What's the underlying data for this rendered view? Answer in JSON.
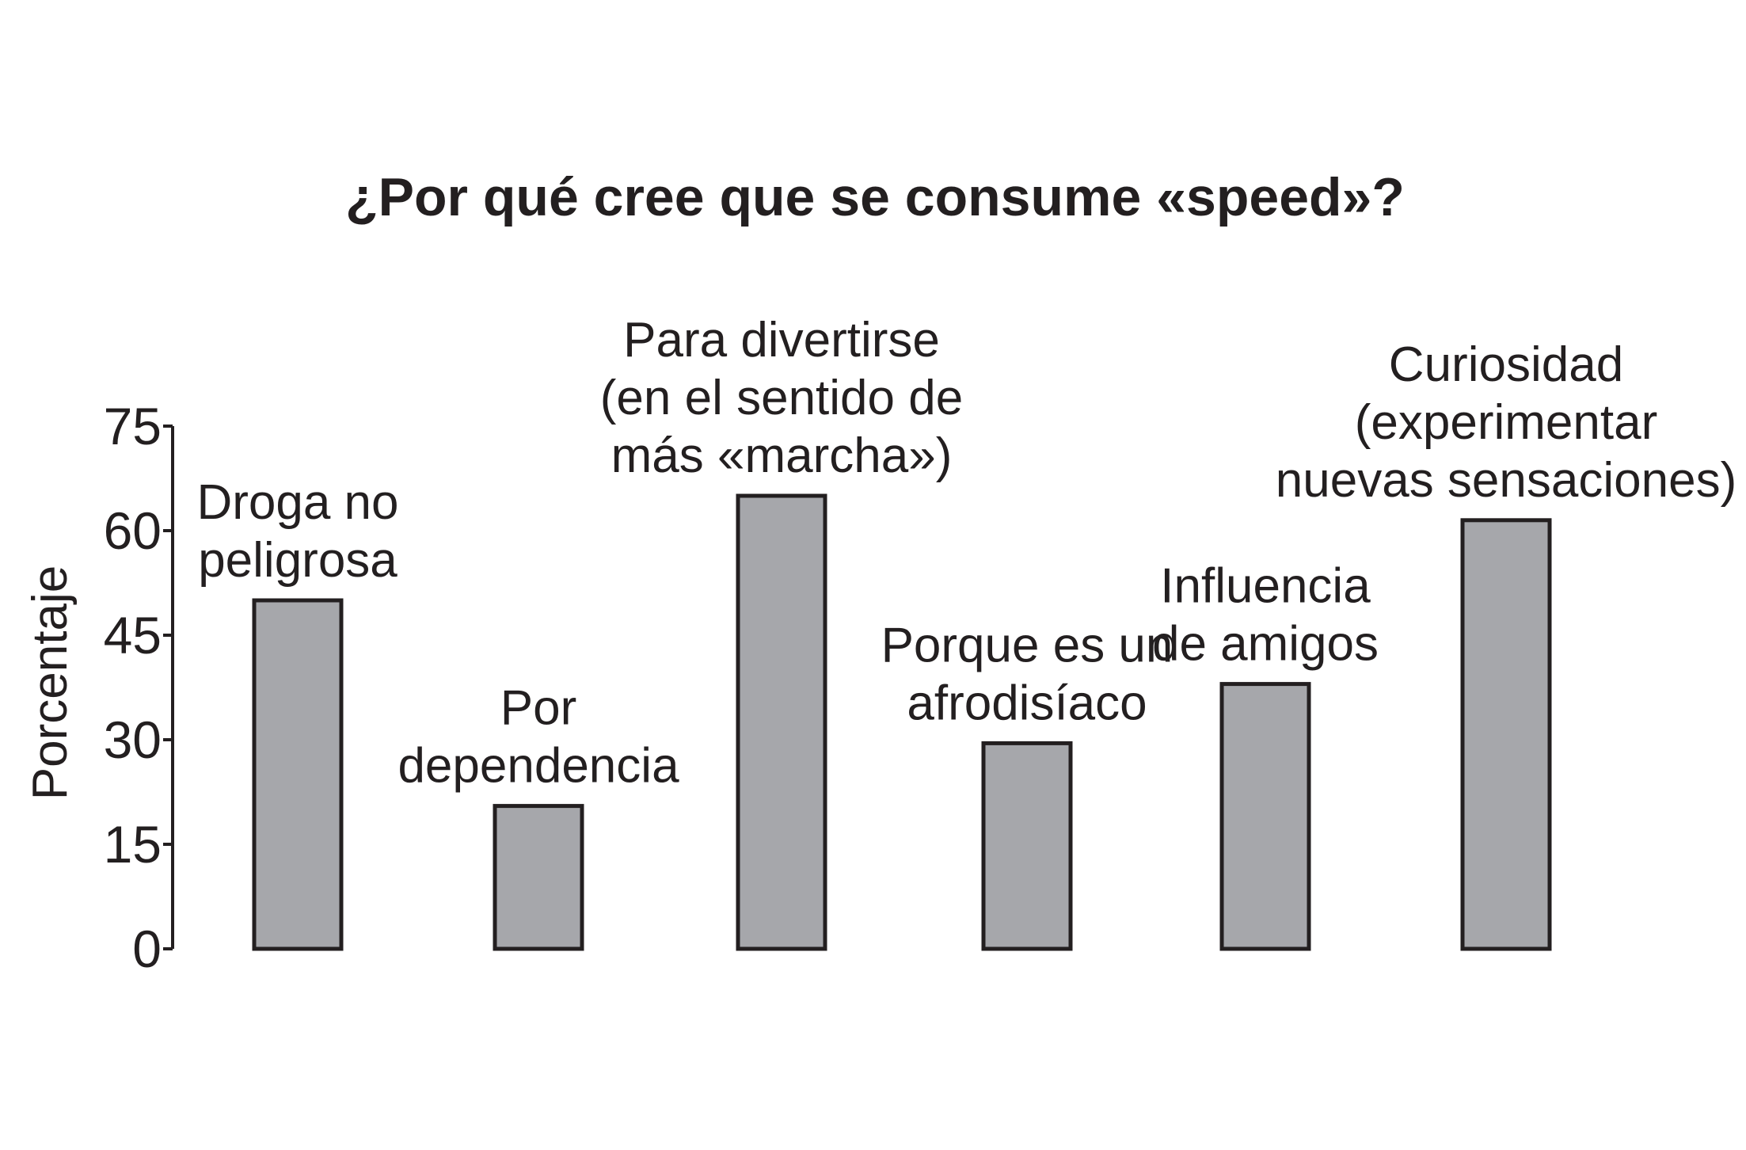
{
  "chart_data": {
    "type": "bar",
    "title": "¿Por qué cree que se consume «speed»?",
    "ylabel": "Porcentaje",
    "xlabel": "",
    "ylim": [
      0,
      75
    ],
    "yticks": [
      0,
      15,
      30,
      45,
      60,
      75
    ],
    "grid": false,
    "categories": [
      [
        "Droga no",
        "peligrosa"
      ],
      [
        "Por",
        "dependencia"
      ],
      [
        "Para divertirse",
        "(en el sentido de",
        "más «marcha»)"
      ],
      [
        "Porque es un",
        "afrodisíaco"
      ],
      [
        "Influencia",
        "de amigos"
      ],
      [
        "Curiosidad",
        "(experimentar",
        "nuevas sensaciones)"
      ]
    ],
    "values": [
      50,
      20.5,
      65,
      29.5,
      38,
      61.5
    ]
  },
  "colors": {
    "bar_fill": "#a6a7ab",
    "outline": "#231f20",
    "background": "#ffffff"
  }
}
